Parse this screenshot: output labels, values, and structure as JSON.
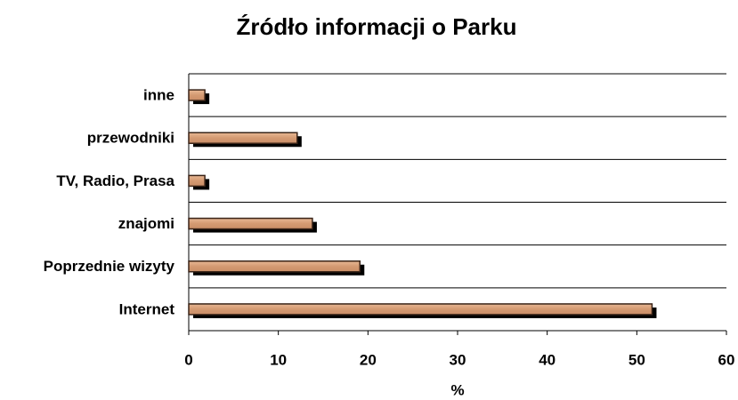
{
  "chart_data": {
    "type": "bar",
    "orientation": "horizontal",
    "title": "Źródło informacji o Parku",
    "x_label": "%",
    "categories": [
      "inne",
      "przewodniki",
      "TV, Radio, Prasa",
      "znajomi",
      "Poprzednie wizyty",
      "Internet"
    ],
    "values": [
      1.8,
      12.1,
      1.8,
      13.8,
      19.1,
      51.7
    ],
    "color": "#d8a07a",
    "xlim": [
      0,
      60
    ],
    "xticks": [
      0,
      10,
      20,
      30,
      40,
      50,
      60
    ]
  }
}
